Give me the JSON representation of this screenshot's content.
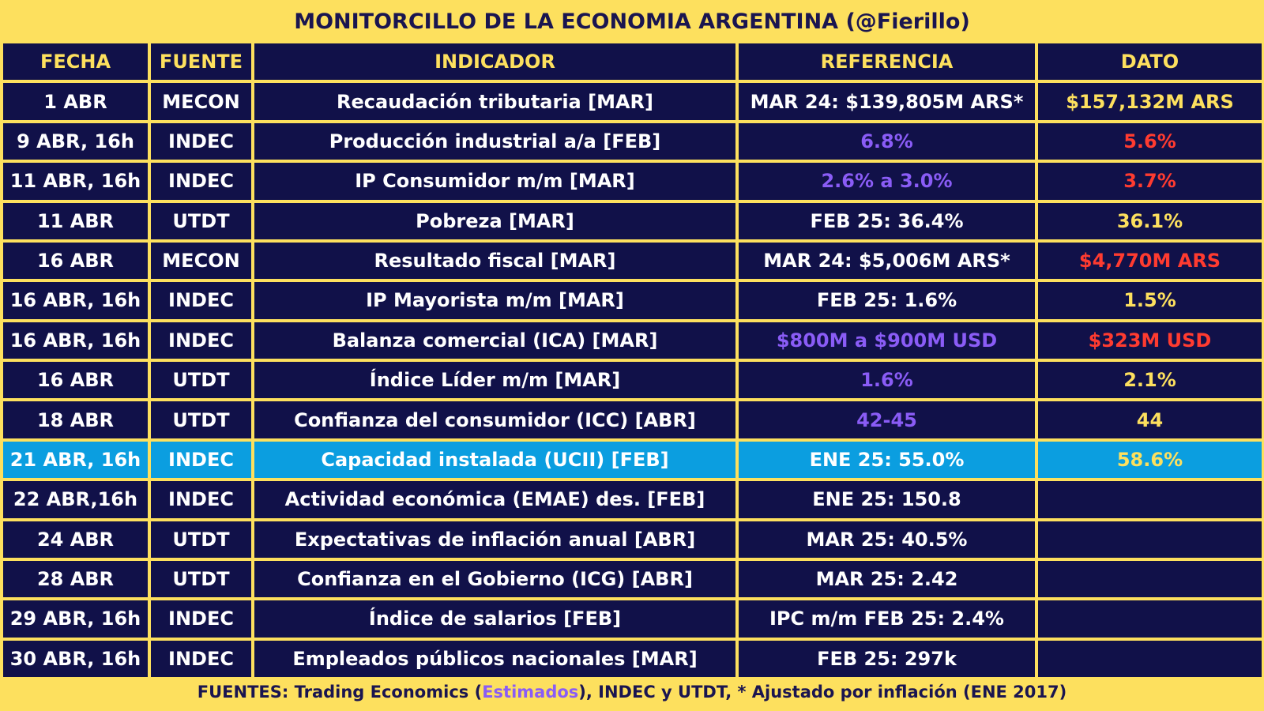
{
  "title": "MONITORCILLO DE LA ECONOMIA ARGENTINA (@Fierillo)",
  "headers": [
    "FECHA",
    "FUENTE",
    "INDICADOR",
    "REFERENCIA",
    "DATO"
  ],
  "colors": {
    "background_yellow": "#fde05e",
    "cell_navy": "#111149",
    "highlight_blue": "#0b9ee0",
    "estimate_purple": "#8a5cf6",
    "negative_red": "#ff3b30",
    "header_text_yellow": "#fde05e"
  },
  "rows": [
    {
      "fecha": "1 ABR",
      "fuente": "MECON",
      "indicador": "Recaudación tributaria [MAR]",
      "referencia": "MAR 24: $139,805M ARS*",
      "ref_color": "white",
      "dato": "$157,132M ARS",
      "dato_color": "yellow",
      "highlight": false
    },
    {
      "fecha": "9 ABR, 16h",
      "fuente": "INDEC",
      "indicador": "Producción industrial a/a [FEB]",
      "referencia": "6.8%",
      "ref_color": "purple",
      "dato": "5.6%",
      "dato_color": "red",
      "highlight": false
    },
    {
      "fecha": "11 ABR, 16h",
      "fuente": "INDEC",
      "indicador": "IP Consumidor m/m [MAR]",
      "referencia": "2.6% a 3.0%",
      "ref_color": "purple",
      "dato": "3.7%",
      "dato_color": "red",
      "highlight": false
    },
    {
      "fecha": "11 ABR",
      "fuente": "UTDT",
      "indicador": "Pobreza [MAR]",
      "referencia": "FEB 25: 36.4%",
      "ref_color": "white",
      "dato": "36.1%",
      "dato_color": "yellow",
      "highlight": false
    },
    {
      "fecha": "16 ABR",
      "fuente": "MECON",
      "indicador": "Resultado fiscal [MAR]",
      "referencia": "MAR 24: $5,006M ARS*",
      "ref_color": "white",
      "dato": "$4,770M ARS",
      "dato_color": "red",
      "highlight": false
    },
    {
      "fecha": "16 ABR, 16h",
      "fuente": "INDEC",
      "indicador": "IP Mayorista m/m [MAR]",
      "referencia": "FEB 25: 1.6%",
      "ref_color": "white",
      "dato": "1.5%",
      "dato_color": "yellow",
      "highlight": false
    },
    {
      "fecha": "16 ABR, 16h",
      "fuente": "INDEC",
      "indicador": "Balanza comercial (ICA) [MAR]",
      "referencia": "$800M a $900M USD",
      "ref_color": "purple",
      "dato": "$323M USD",
      "dato_color": "red",
      "highlight": false
    },
    {
      "fecha": "16 ABR",
      "fuente": "UTDT",
      "indicador": "Índice Líder m/m [MAR]",
      "referencia": "1.6%",
      "ref_color": "purple",
      "dato": "2.1%",
      "dato_color": "yellow",
      "highlight": false
    },
    {
      "fecha": "18 ABR",
      "fuente": "UTDT",
      "indicador": "Confianza del consumidor (ICC) [ABR]",
      "referencia": "42-45",
      "ref_color": "purple",
      "dato": "44",
      "dato_color": "yellow",
      "highlight": false
    },
    {
      "fecha": "21 ABR, 16h",
      "fuente": "INDEC",
      "indicador": "Capacidad instalada (UCII) [FEB]",
      "referencia": "ENE 25: 55.0%",
      "ref_color": "white",
      "dato": "58.6%",
      "dato_color": "yellow",
      "highlight": true
    },
    {
      "fecha": "22 ABR,16h",
      "fuente": "INDEC",
      "indicador": "Actividad económica (EMAE) des. [FEB]",
      "referencia": "ENE 25: 150.8",
      "ref_color": "white",
      "dato": "",
      "dato_color": "yellow",
      "highlight": false
    },
    {
      "fecha": "24 ABR",
      "fuente": "UTDT",
      "indicador": "Expectativas de inflación anual [ABR]",
      "referencia": "MAR 25: 40.5%",
      "ref_color": "white",
      "dato": "",
      "dato_color": "yellow",
      "highlight": false
    },
    {
      "fecha": "28 ABR",
      "fuente": "UTDT",
      "indicador": "Confianza en el Gobierno (ICG) [ABR]",
      "referencia": "MAR 25: 2.42",
      "ref_color": "white",
      "dato": "",
      "dato_color": "yellow",
      "highlight": false
    },
    {
      "fecha": "29 ABR, 16h",
      "fuente": "INDEC",
      "indicador": "Índice de salarios [FEB]",
      "referencia": "IPC m/m FEB 25: 2.4%",
      "ref_color": "white",
      "dato": "",
      "dato_color": "yellow",
      "highlight": false
    },
    {
      "fecha": "30 ABR, 16h",
      "fuente": "INDEC",
      "indicador": "Empleados públicos nacionales [MAR]",
      "referencia": "FEB 25: 297k",
      "ref_color": "white",
      "dato": "",
      "dato_color": "yellow",
      "highlight": false
    }
  ],
  "footer": {
    "prefix": "FUENTES: Trading Economics (",
    "estimados": "Estimados",
    "suffix": "), INDEC y UTDT, * Ajustado por inflación (ENE 2017)"
  }
}
